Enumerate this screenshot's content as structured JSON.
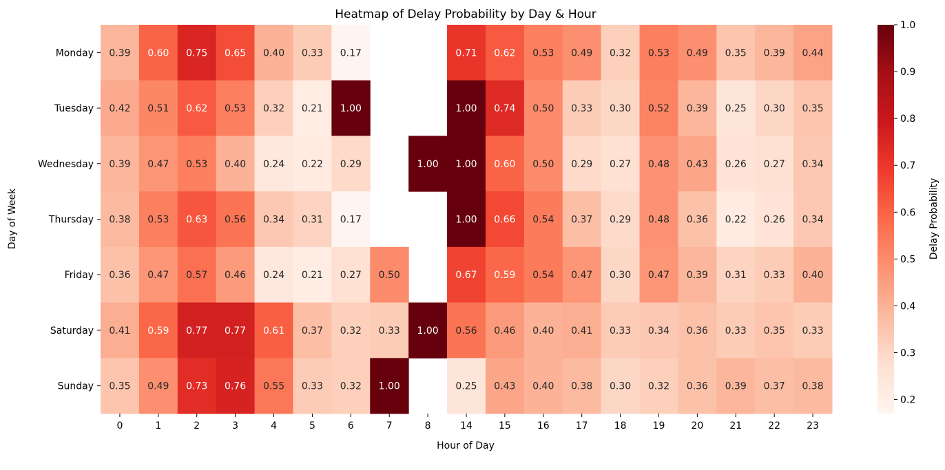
{
  "chart_data": {
    "type": "heatmap",
    "title": "Heatmap of Delay Probability by Day & Hour",
    "xlabel": "Hour of Day",
    "ylabel": "Day of Week",
    "x_categories": [
      "0",
      "1",
      "2",
      "3",
      "4",
      "5",
      "6",
      "7",
      "8",
      "14",
      "15",
      "16",
      "17",
      "18",
      "19",
      "20",
      "21",
      "22",
      "23"
    ],
    "y_categories": [
      "Monday",
      "Tuesday",
      "Wednesday",
      "Thursday",
      "Friday",
      "Saturday",
      "Sunday"
    ],
    "values": [
      [
        0.39,
        0.6,
        0.75,
        0.65,
        0.4,
        0.33,
        0.17,
        null,
        null,
        0.71,
        0.62,
        0.53,
        0.49,
        0.32,
        0.53,
        0.49,
        0.35,
        0.39,
        0.44
      ],
      [
        0.42,
        0.51,
        0.62,
        0.53,
        0.32,
        0.21,
        1.0,
        null,
        null,
        1.0,
        0.74,
        0.5,
        0.33,
        0.3,
        0.52,
        0.39,
        0.25,
        0.3,
        0.35
      ],
      [
        0.39,
        0.47,
        0.53,
        0.4,
        0.24,
        0.22,
        0.29,
        null,
        1.0,
        1.0,
        0.6,
        0.5,
        0.29,
        0.27,
        0.48,
        0.43,
        0.26,
        0.27,
        0.34
      ],
      [
        0.38,
        0.53,
        0.63,
        0.56,
        0.34,
        0.31,
        0.17,
        null,
        null,
        1.0,
        0.66,
        0.54,
        0.37,
        0.29,
        0.48,
        0.36,
        0.22,
        0.26,
        0.34
      ],
      [
        0.36,
        0.47,
        0.57,
        0.46,
        0.24,
        0.21,
        0.27,
        0.5,
        null,
        0.67,
        0.59,
        0.54,
        0.47,
        0.3,
        0.47,
        0.39,
        0.31,
        0.33,
        0.4
      ],
      [
        0.41,
        0.59,
        0.77,
        0.77,
        0.61,
        0.37,
        0.32,
        0.33,
        1.0,
        0.56,
        0.46,
        0.4,
        0.41,
        0.33,
        0.34,
        0.36,
        0.33,
        0.35,
        0.33
      ],
      [
        0.35,
        0.49,
        0.73,
        0.76,
        0.55,
        0.33,
        0.32,
        1.0,
        null,
        0.25,
        0.43,
        0.4,
        0.38,
        0.3,
        0.32,
        0.36,
        0.39,
        0.37,
        0.38
      ]
    ],
    "colorbar": {
      "label": "Delay Probability",
      "min": 0.17,
      "max": 1.0,
      "ticks": [
        0.2,
        0.3,
        0.4,
        0.5,
        0.6,
        0.7,
        0.8,
        0.9,
        1.0
      ],
      "tick_labels": [
        "0.2",
        "0.3",
        "0.4",
        "0.5",
        "0.6",
        "0.7",
        "0.8",
        "0.9",
        "1.0"
      ],
      "colormap": "Reds",
      "colors": [
        "#fff5f0",
        "#fee0d2",
        "#fcbba1",
        "#fc9272",
        "#fb6a4a",
        "#ef3b2c",
        "#cb181d",
        "#a50f15",
        "#67000d"
      ]
    },
    "value_format": "2 decimals"
  }
}
